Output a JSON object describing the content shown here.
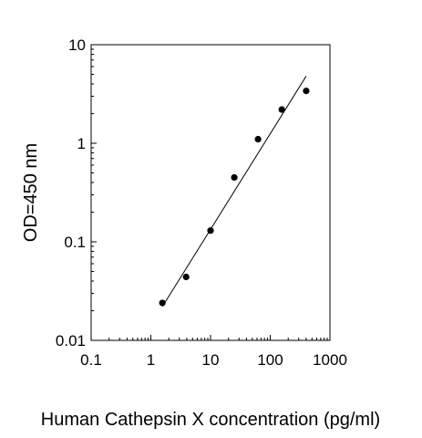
{
  "chart_data": {
    "type": "scatter",
    "title": "",
    "xlabel": "Human Cathepsin X concentration (pg/ml)",
    "ylabel": "OD=450 nm",
    "x_scale": "log",
    "y_scale": "log",
    "xlim": [
      0.1,
      1000
    ],
    "ylim": [
      0.01,
      10
    ],
    "x_ticks": [
      "0.1",
      "1",
      "10",
      "100",
      "1000"
    ],
    "y_ticks": [
      "0.01",
      "0.1",
      "1",
      "10"
    ],
    "grid": false,
    "legend": "none",
    "series": [
      {
        "points": [
          {
            "x": 1.56,
            "y": 0.024
          },
          {
            "x": 3.9,
            "y": 0.044
          },
          {
            "x": 10,
            "y": 0.13
          },
          {
            "x": 25,
            "y": 0.45
          },
          {
            "x": 62.5,
            "y": 1.1
          },
          {
            "x": 156,
            "y": 2.2
          },
          {
            "x": 400,
            "y": 3.4
          }
        ],
        "color": "#000000"
      }
    ],
    "fit_line": {
      "type": "linear-fit-log-log",
      "x": [
        1.56,
        400
      ],
      "y": [
        0.022,
        4.8
      ],
      "color": "#000000"
    }
  }
}
